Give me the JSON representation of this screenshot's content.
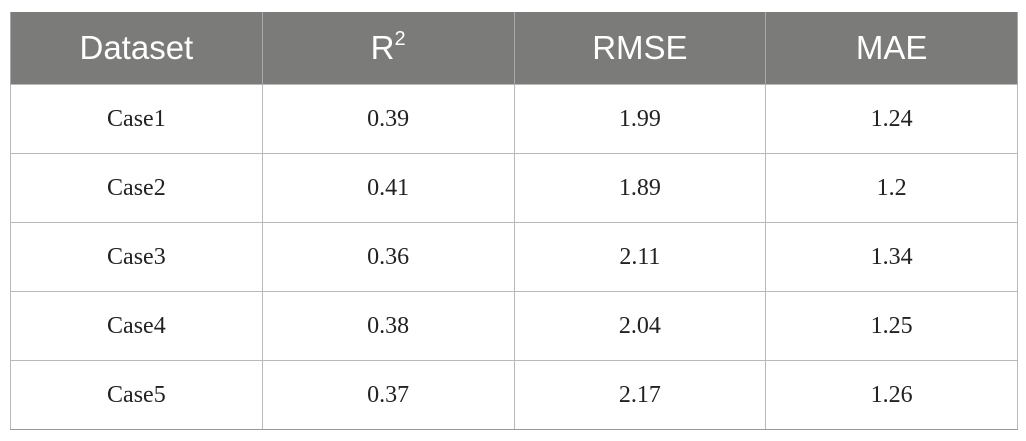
{
  "table": {
    "headers": [
      {
        "label": "Dataset",
        "sup": ""
      },
      {
        "label": "R",
        "sup": "2"
      },
      {
        "label": "RMSE",
        "sup": ""
      },
      {
        "label": "MAE",
        "sup": ""
      }
    ],
    "rows": [
      [
        "Case1",
        "0.39",
        "1.99",
        "1.24"
      ],
      [
        "Case2",
        "0.41",
        "1.89",
        "1.2"
      ],
      [
        "Case3",
        "0.36",
        "2.11",
        "1.34"
      ],
      [
        "Case4",
        "0.38",
        "2.04",
        "1.25"
      ],
      [
        "Case5",
        "0.37",
        "2.17",
        "1.26"
      ]
    ]
  }
}
